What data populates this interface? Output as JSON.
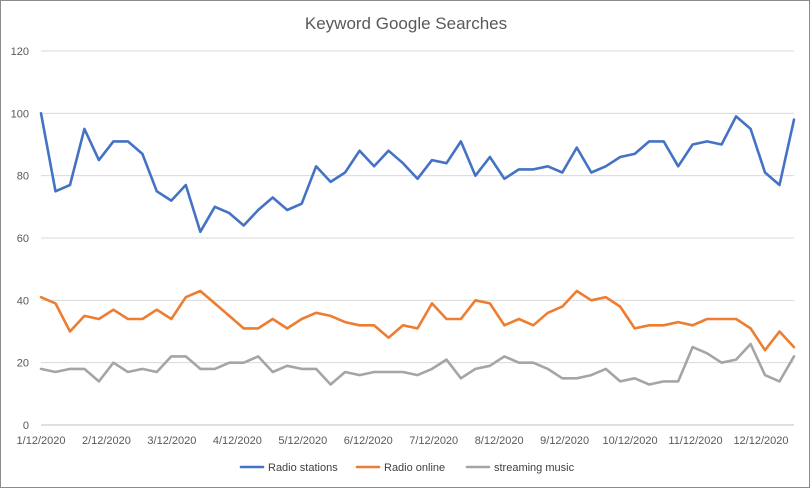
{
  "chart_data": {
    "type": "line",
    "title": "Keyword Google Searches",
    "xlabel": "",
    "ylabel": "",
    "ylim": [
      0,
      120
    ],
    "yticks": [
      0,
      20,
      40,
      60,
      80,
      100,
      120
    ],
    "grid": true,
    "legend_position": "bottom",
    "x_tick_labels": [
      "1/12/2020",
      "2/12/2020",
      "3/12/2020",
      "4/12/2020",
      "5/12/2020",
      "6/12/2020",
      "7/12/2020",
      "8/12/2020",
      "9/12/2020",
      "10/12/2020",
      "11/12/2020",
      "12/12/2020"
    ],
    "series": [
      {
        "name": "Radio stations",
        "color": "#4472c4",
        "values": [
          100,
          75,
          77,
          95,
          85,
          91,
          91,
          87,
          75,
          72,
          77,
          62,
          70,
          68,
          64,
          69,
          73,
          69,
          71,
          83,
          78,
          81,
          88,
          83,
          88,
          84,
          79,
          85,
          84,
          91,
          80,
          86,
          79,
          82,
          82,
          83,
          81,
          89,
          81,
          83,
          86,
          87,
          91,
          91,
          83,
          90,
          91,
          90,
          99,
          95,
          81,
          77,
          98
        ]
      },
      {
        "name": "Radio online",
        "color": "#ed7d31",
        "values": [
          41,
          39,
          30,
          35,
          34,
          37,
          34,
          34,
          37,
          34,
          41,
          43,
          39,
          35,
          31,
          31,
          34,
          31,
          34,
          36,
          35,
          33,
          32,
          32,
          28,
          32,
          31,
          39,
          34,
          34,
          40,
          39,
          32,
          34,
          32,
          36,
          38,
          43,
          40,
          41,
          38,
          31,
          32,
          32,
          33,
          32,
          34,
          34,
          34,
          31,
          24,
          30,
          25
        ]
      },
      {
        "name": "streaming music",
        "color": "#a5a5a5",
        "values": [
          18,
          17,
          18,
          18,
          14,
          20,
          17,
          18,
          17,
          22,
          22,
          18,
          18,
          20,
          20,
          22,
          17,
          19,
          18,
          18,
          13,
          17,
          16,
          17,
          17,
          17,
          16,
          18,
          21,
          15,
          18,
          19,
          22,
          20,
          20,
          18,
          15,
          15,
          16,
          18,
          14,
          15,
          13,
          14,
          14,
          25,
          23,
          20,
          21,
          26,
          16,
          14,
          22
        ]
      }
    ]
  }
}
